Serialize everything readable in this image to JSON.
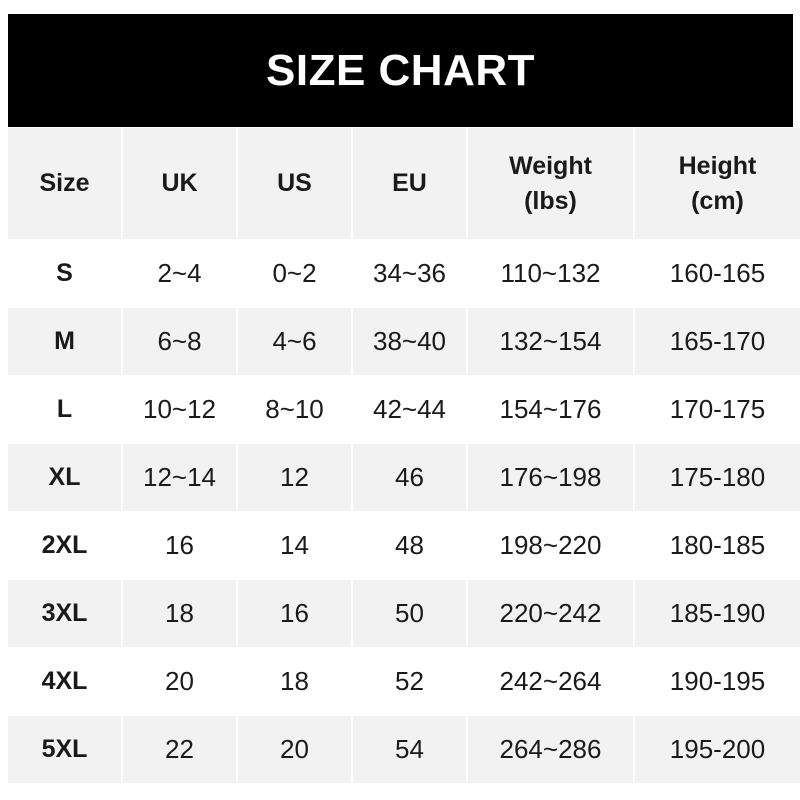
{
  "title": "SIZE CHART",
  "headers": [
    {
      "line1": "Size",
      "line2": ""
    },
    {
      "line1": "UK",
      "line2": ""
    },
    {
      "line1": "US",
      "line2": ""
    },
    {
      "line1": "EU",
      "line2": ""
    },
    {
      "line1": "Weight",
      "line2": "(lbs)"
    },
    {
      "line1": "Height",
      "line2": "(cm)"
    }
  ],
  "rows": [
    [
      "S",
      "2~4",
      "0~2",
      "34~36",
      "110~132",
      "160-165"
    ],
    [
      "M",
      "6~8",
      "4~6",
      "38~40",
      "132~154",
      "165-170"
    ],
    [
      "L",
      "10~12",
      "8~10",
      "42~44",
      "154~176",
      "170-175"
    ],
    [
      "XL",
      "12~14",
      "12",
      "46",
      "176~198",
      "175-180"
    ],
    [
      "2XL",
      "16",
      "14",
      "48",
      "198~220",
      "180-185"
    ],
    [
      "3XL",
      "18",
      "16",
      "50",
      "220~242",
      "185-190"
    ],
    [
      "4XL",
      "20",
      "18",
      "52",
      "242~264",
      "190-195"
    ],
    [
      "5XL",
      "22",
      "20",
      "54",
      "264~286",
      "195-200"
    ]
  ],
  "colors": {
    "header_bg": "#000000",
    "alt_row": "#f2f2f2"
  }
}
